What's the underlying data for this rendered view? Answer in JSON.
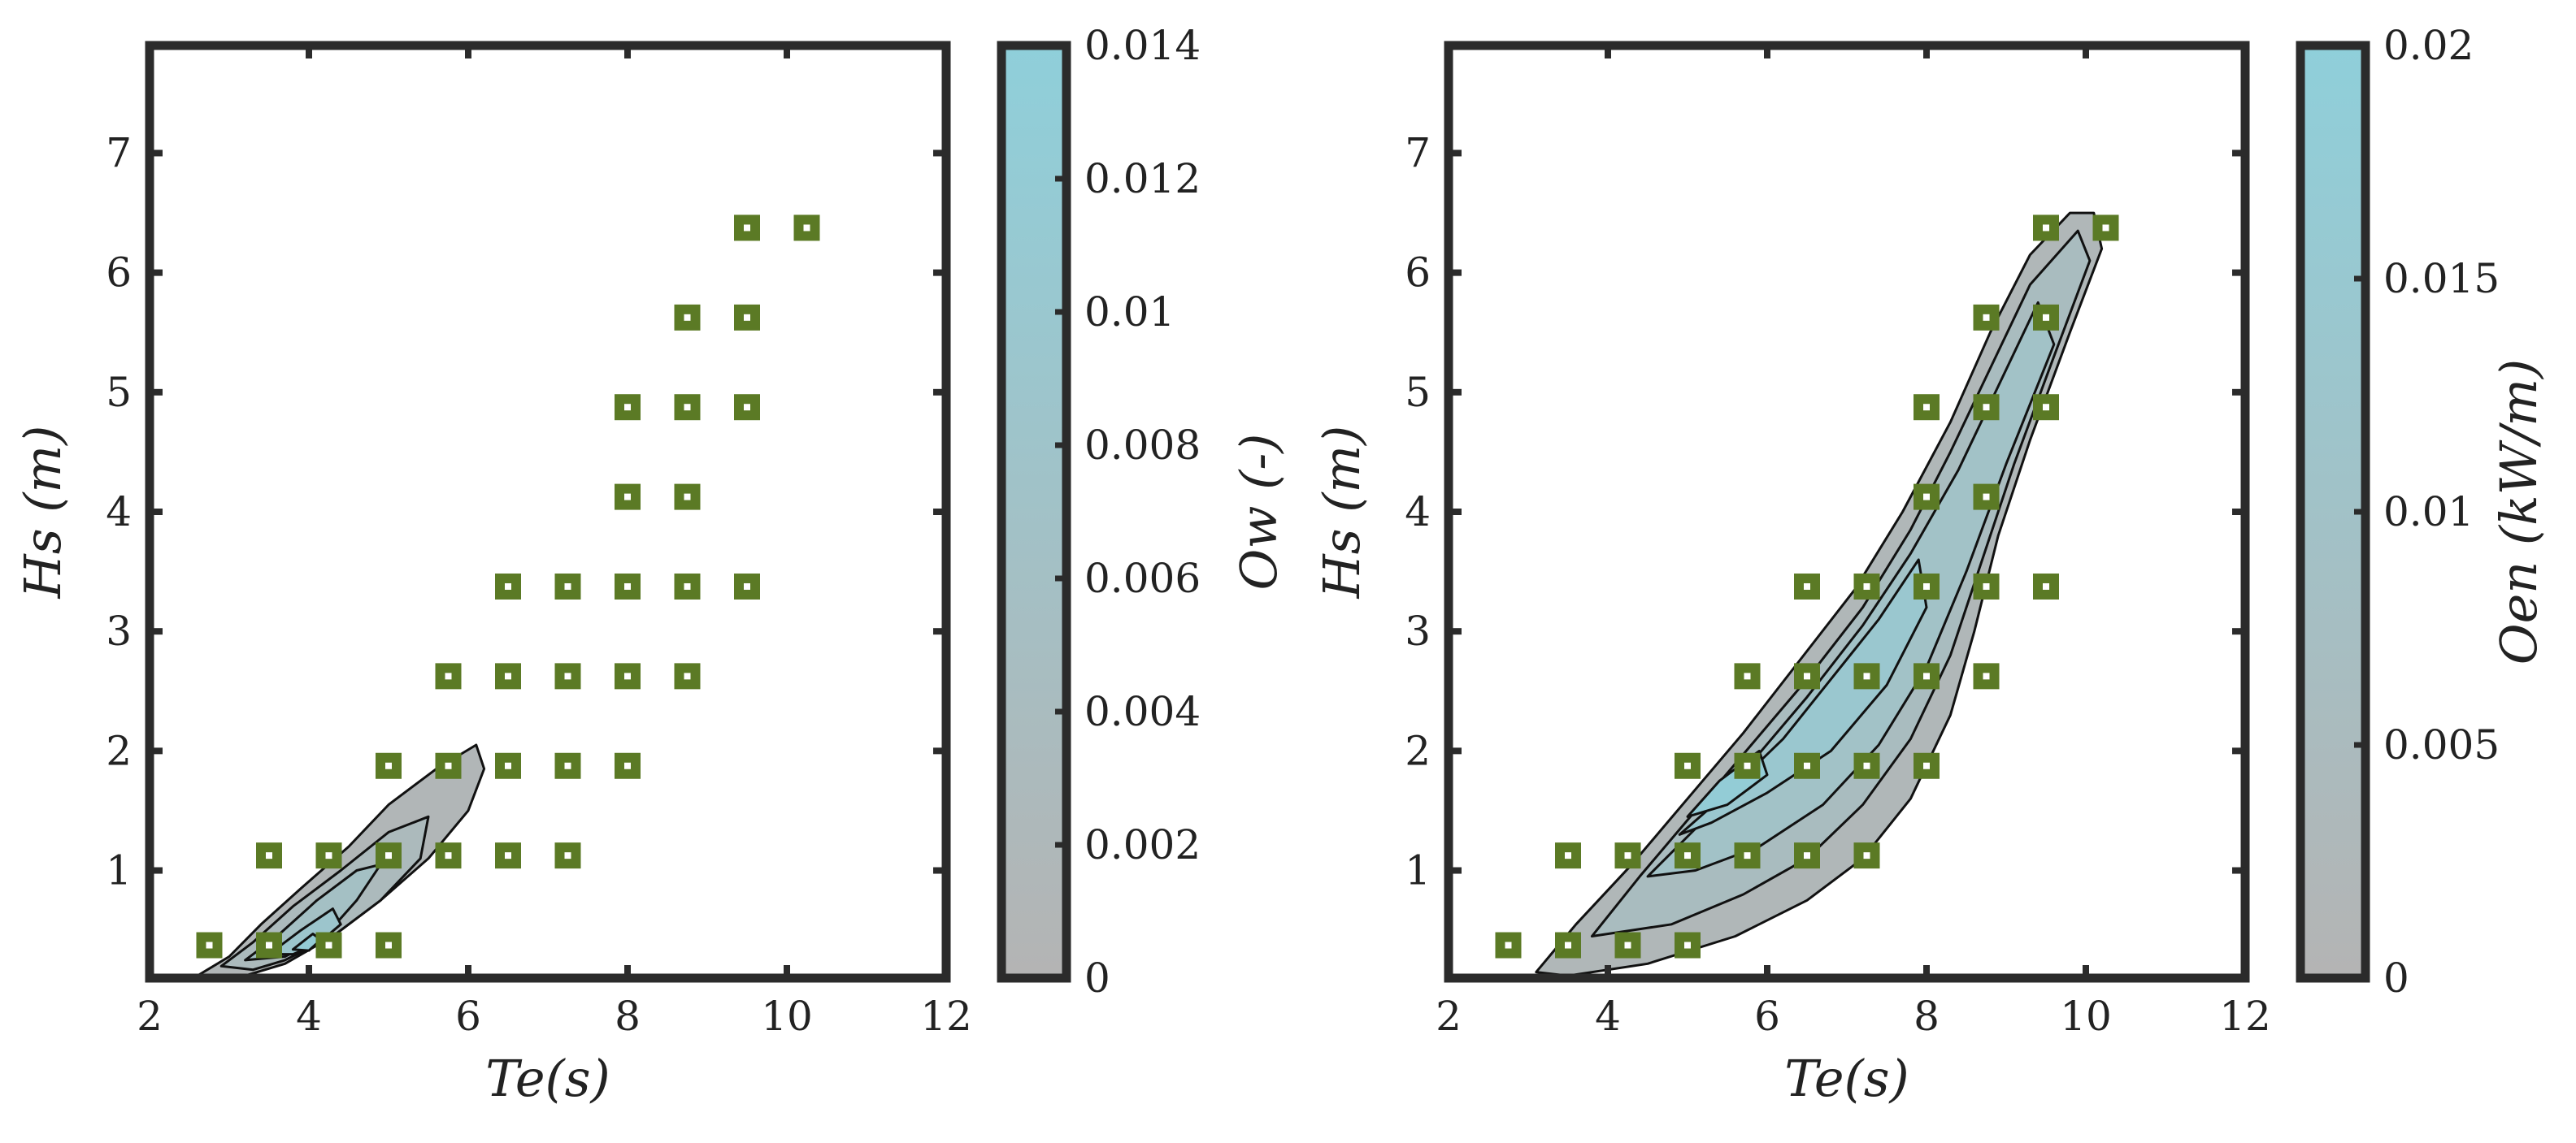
{
  "colors": {
    "marker": "#5b7a25",
    "marker_dot": "#ffffff",
    "frame": "#2b2b2b",
    "contour_line": "#111111",
    "cmap_low": "#b4b4b4",
    "cmap_high": "#8fcfda"
  },
  "chart_data": [
    {
      "type": "contour+scatter",
      "xlabel": "Te(s)",
      "ylabel": "Hs (m)",
      "xlim": [
        2,
        12
      ],
      "ylim": [
        0.1,
        7.9
      ],
      "xticks": [
        2,
        4,
        6,
        8,
        10,
        12
      ],
      "yticks": [
        1,
        2,
        3,
        4,
        5,
        6,
        7
      ],
      "colorbar": {
        "label": "Ow (-)",
        "range": [
          0,
          0.014
        ],
        "ticks": [
          "0",
          "0.002",
          "0.004",
          "0.006",
          "0.008",
          "0.01",
          "0.012",
          "0.014"
        ]
      },
      "contour_regions": [
        {
          "level": 0.001,
          "points": [
            [
              2.6,
              0.12
            ],
            [
              3.0,
              0.28
            ],
            [
              3.4,
              0.55
            ],
            [
              3.9,
              0.85
            ],
            [
              4.5,
              1.2
            ],
            [
              5.0,
              1.55
            ],
            [
              5.6,
              1.85
            ],
            [
              6.1,
              2.05
            ],
            [
              6.2,
              1.85
            ],
            [
              6.0,
              1.5
            ],
            [
              5.5,
              1.1
            ],
            [
              4.9,
              0.75
            ],
            [
              4.3,
              0.45
            ],
            [
              3.7,
              0.22
            ],
            [
              3.2,
              0.12
            ]
          ]
        },
        {
          "level": 0.003,
          "points": [
            [
              2.9,
              0.2
            ],
            [
              3.3,
              0.4
            ],
            [
              3.8,
              0.7
            ],
            [
              4.4,
              1.0
            ],
            [
              5.0,
              1.32
            ],
            [
              5.5,
              1.45
            ],
            [
              5.4,
              1.1
            ],
            [
              4.9,
              0.75
            ],
            [
              4.3,
              0.45
            ],
            [
              3.7,
              0.25
            ],
            [
              3.3,
              0.17
            ]
          ]
        },
        {
          "level": 0.006,
          "points": [
            [
              3.2,
              0.25
            ],
            [
              3.6,
              0.45
            ],
            [
              4.1,
              0.75
            ],
            [
              4.6,
              1.0
            ],
            [
              4.9,
              1.05
            ],
            [
              4.6,
              0.75
            ],
            [
              4.2,
              0.45
            ],
            [
              3.7,
              0.28
            ]
          ]
        },
        {
          "level": 0.009,
          "points": [
            [
              3.5,
              0.3
            ],
            [
              3.9,
              0.5
            ],
            [
              4.3,
              0.68
            ],
            [
              4.4,
              0.55
            ],
            [
              4.1,
              0.38
            ],
            [
              3.8,
              0.3
            ]
          ]
        },
        {
          "level": 0.012,
          "points": [
            [
              3.8,
              0.34
            ],
            [
              4.05,
              0.47
            ],
            [
              4.15,
              0.42
            ],
            [
              4.0,
              0.33
            ]
          ]
        }
      ],
      "scatter": [
        [
          2.75,
          0.375
        ],
        [
          3.5,
          0.375
        ],
        [
          4.25,
          0.375
        ],
        [
          5.0,
          0.375
        ],
        [
          3.5,
          1.125
        ],
        [
          4.25,
          1.125
        ],
        [
          5.0,
          1.125
        ],
        [
          5.75,
          1.125
        ],
        [
          6.5,
          1.125
        ],
        [
          7.25,
          1.125
        ],
        [
          5.0,
          1.875
        ],
        [
          5.75,
          1.875
        ],
        [
          6.5,
          1.875
        ],
        [
          7.25,
          1.875
        ],
        [
          8.0,
          1.875
        ],
        [
          5.75,
          2.625
        ],
        [
          6.5,
          2.625
        ],
        [
          7.25,
          2.625
        ],
        [
          8.0,
          2.625
        ],
        [
          8.75,
          2.625
        ],
        [
          6.5,
          3.375
        ],
        [
          7.25,
          3.375
        ],
        [
          8.0,
          3.375
        ],
        [
          8.75,
          3.375
        ],
        [
          9.5,
          3.375
        ],
        [
          8.0,
          4.125
        ],
        [
          8.75,
          4.125
        ],
        [
          8.0,
          4.875
        ],
        [
          8.75,
          4.875
        ],
        [
          9.5,
          4.875
        ],
        [
          8.75,
          5.625
        ],
        [
          9.5,
          5.625
        ],
        [
          9.5,
          6.375
        ],
        [
          10.25,
          6.375
        ]
      ]
    },
    {
      "type": "contour+scatter",
      "xlabel": "Te(s)",
      "ylabel": "Hs (m)",
      "xlim": [
        2,
        12
      ],
      "ylim": [
        0.1,
        7.9
      ],
      "xticks": [
        2,
        4,
        6,
        8,
        10,
        12
      ],
      "yticks": [
        1,
        2,
        3,
        4,
        5,
        6,
        7
      ],
      "colorbar": {
        "label": "Oen (kW/m)",
        "range": [
          0,
          0.02
        ],
        "ticks": [
          "0",
          "0.005",
          "0.01",
          "0.015",
          "0.02"
        ]
      },
      "contour_regions": [
        {
          "level": 0.002,
          "points": [
            [
              3.1,
              0.15
            ],
            [
              3.6,
              0.55
            ],
            [
              4.3,
              1.05
            ],
            [
              5.0,
              1.6
            ],
            [
              5.7,
              2.15
            ],
            [
              6.4,
              2.75
            ],
            [
              7.1,
              3.35
            ],
            [
              7.7,
              4.0
            ],
            [
              8.3,
              4.75
            ],
            [
              8.8,
              5.5
            ],
            [
              9.3,
              6.15
            ],
            [
              9.8,
              6.5
            ],
            [
              10.1,
              6.5
            ],
            [
              10.2,
              6.2
            ],
            [
              9.8,
              5.5
            ],
            [
              9.3,
              4.6
            ],
            [
              8.9,
              3.8
            ],
            [
              8.6,
              3.0
            ],
            [
              8.3,
              2.3
            ],
            [
              7.8,
              1.6
            ],
            [
              7.2,
              1.1
            ],
            [
              6.5,
              0.75
            ],
            [
              5.6,
              0.45
            ],
            [
              4.5,
              0.22
            ],
            [
              3.5,
              0.12
            ]
          ]
        },
        {
          "level": 0.006,
          "points": [
            [
              3.8,
              0.45
            ],
            [
              4.4,
              0.95
            ],
            [
              5.1,
              1.5
            ],
            [
              5.8,
              2.05
            ],
            [
              6.5,
              2.6
            ],
            [
              7.2,
              3.2
            ],
            [
              7.8,
              3.85
            ],
            [
              8.3,
              4.5
            ],
            [
              8.8,
              5.2
            ],
            [
              9.3,
              5.9
            ],
            [
              9.9,
              6.35
            ],
            [
              10.05,
              6.1
            ],
            [
              9.6,
              5.3
            ],
            [
              9.1,
              4.4
            ],
            [
              8.7,
              3.6
            ],
            [
              8.3,
              2.8
            ],
            [
              7.8,
              2.1
            ],
            [
              7.2,
              1.55
            ],
            [
              6.5,
              1.1
            ],
            [
              5.7,
              0.8
            ],
            [
              4.8,
              0.55
            ]
          ]
        },
        {
          "level": 0.01,
          "points": [
            [
              4.5,
              0.95
            ],
            [
              5.1,
              1.35
            ],
            [
              5.8,
              1.9
            ],
            [
              6.5,
              2.45
            ],
            [
              7.2,
              3.05
            ],
            [
              7.8,
              3.65
            ],
            [
              8.4,
              4.35
            ],
            [
              8.9,
              5.05
            ],
            [
              9.4,
              5.75
            ],
            [
              9.6,
              5.4
            ],
            [
              9.0,
              4.4
            ],
            [
              8.5,
              3.5
            ],
            [
              8.0,
              2.7
            ],
            [
              7.4,
              2.05
            ],
            [
              6.7,
              1.55
            ],
            [
              5.9,
              1.2
            ],
            [
              5.1,
              1.0
            ]
          ]
        },
        {
          "level": 0.014,
          "points": [
            [
              4.9,
              1.3
            ],
            [
              5.5,
              1.65
            ],
            [
              6.2,
              2.1
            ],
            [
              6.8,
              2.6
            ],
            [
              7.4,
              3.1
            ],
            [
              7.9,
              3.6
            ],
            [
              8.0,
              3.2
            ],
            [
              7.5,
              2.55
            ],
            [
              6.8,
              2.0
            ],
            [
              6.0,
              1.65
            ],
            [
              5.3,
              1.4
            ]
          ]
        },
        {
          "level": 0.018,
          "points": [
            [
              5.0,
              1.45
            ],
            [
              5.4,
              1.75
            ],
            [
              5.9,
              2.0
            ],
            [
              6.0,
              1.8
            ],
            [
              5.5,
              1.55
            ]
          ]
        }
      ],
      "scatter": [
        [
          2.75,
          0.375
        ],
        [
          3.5,
          0.375
        ],
        [
          4.25,
          0.375
        ],
        [
          5.0,
          0.375
        ],
        [
          3.5,
          1.125
        ],
        [
          4.25,
          1.125
        ],
        [
          5.0,
          1.125
        ],
        [
          5.75,
          1.125
        ],
        [
          6.5,
          1.125
        ],
        [
          7.25,
          1.125
        ],
        [
          5.0,
          1.875
        ],
        [
          5.75,
          1.875
        ],
        [
          6.5,
          1.875
        ],
        [
          7.25,
          1.875
        ],
        [
          8.0,
          1.875
        ],
        [
          5.75,
          2.625
        ],
        [
          6.5,
          2.625
        ],
        [
          7.25,
          2.625
        ],
        [
          8.0,
          2.625
        ],
        [
          8.75,
          2.625
        ],
        [
          6.5,
          3.375
        ],
        [
          7.25,
          3.375
        ],
        [
          8.0,
          3.375
        ],
        [
          8.75,
          3.375
        ],
        [
          9.5,
          3.375
        ],
        [
          8.0,
          4.125
        ],
        [
          8.75,
          4.125
        ],
        [
          8.0,
          4.875
        ],
        [
          8.75,
          4.875
        ],
        [
          9.5,
          4.875
        ],
        [
          8.75,
          5.625
        ],
        [
          9.5,
          5.625
        ],
        [
          9.5,
          6.375
        ],
        [
          10.25,
          6.375
        ]
      ]
    }
  ]
}
